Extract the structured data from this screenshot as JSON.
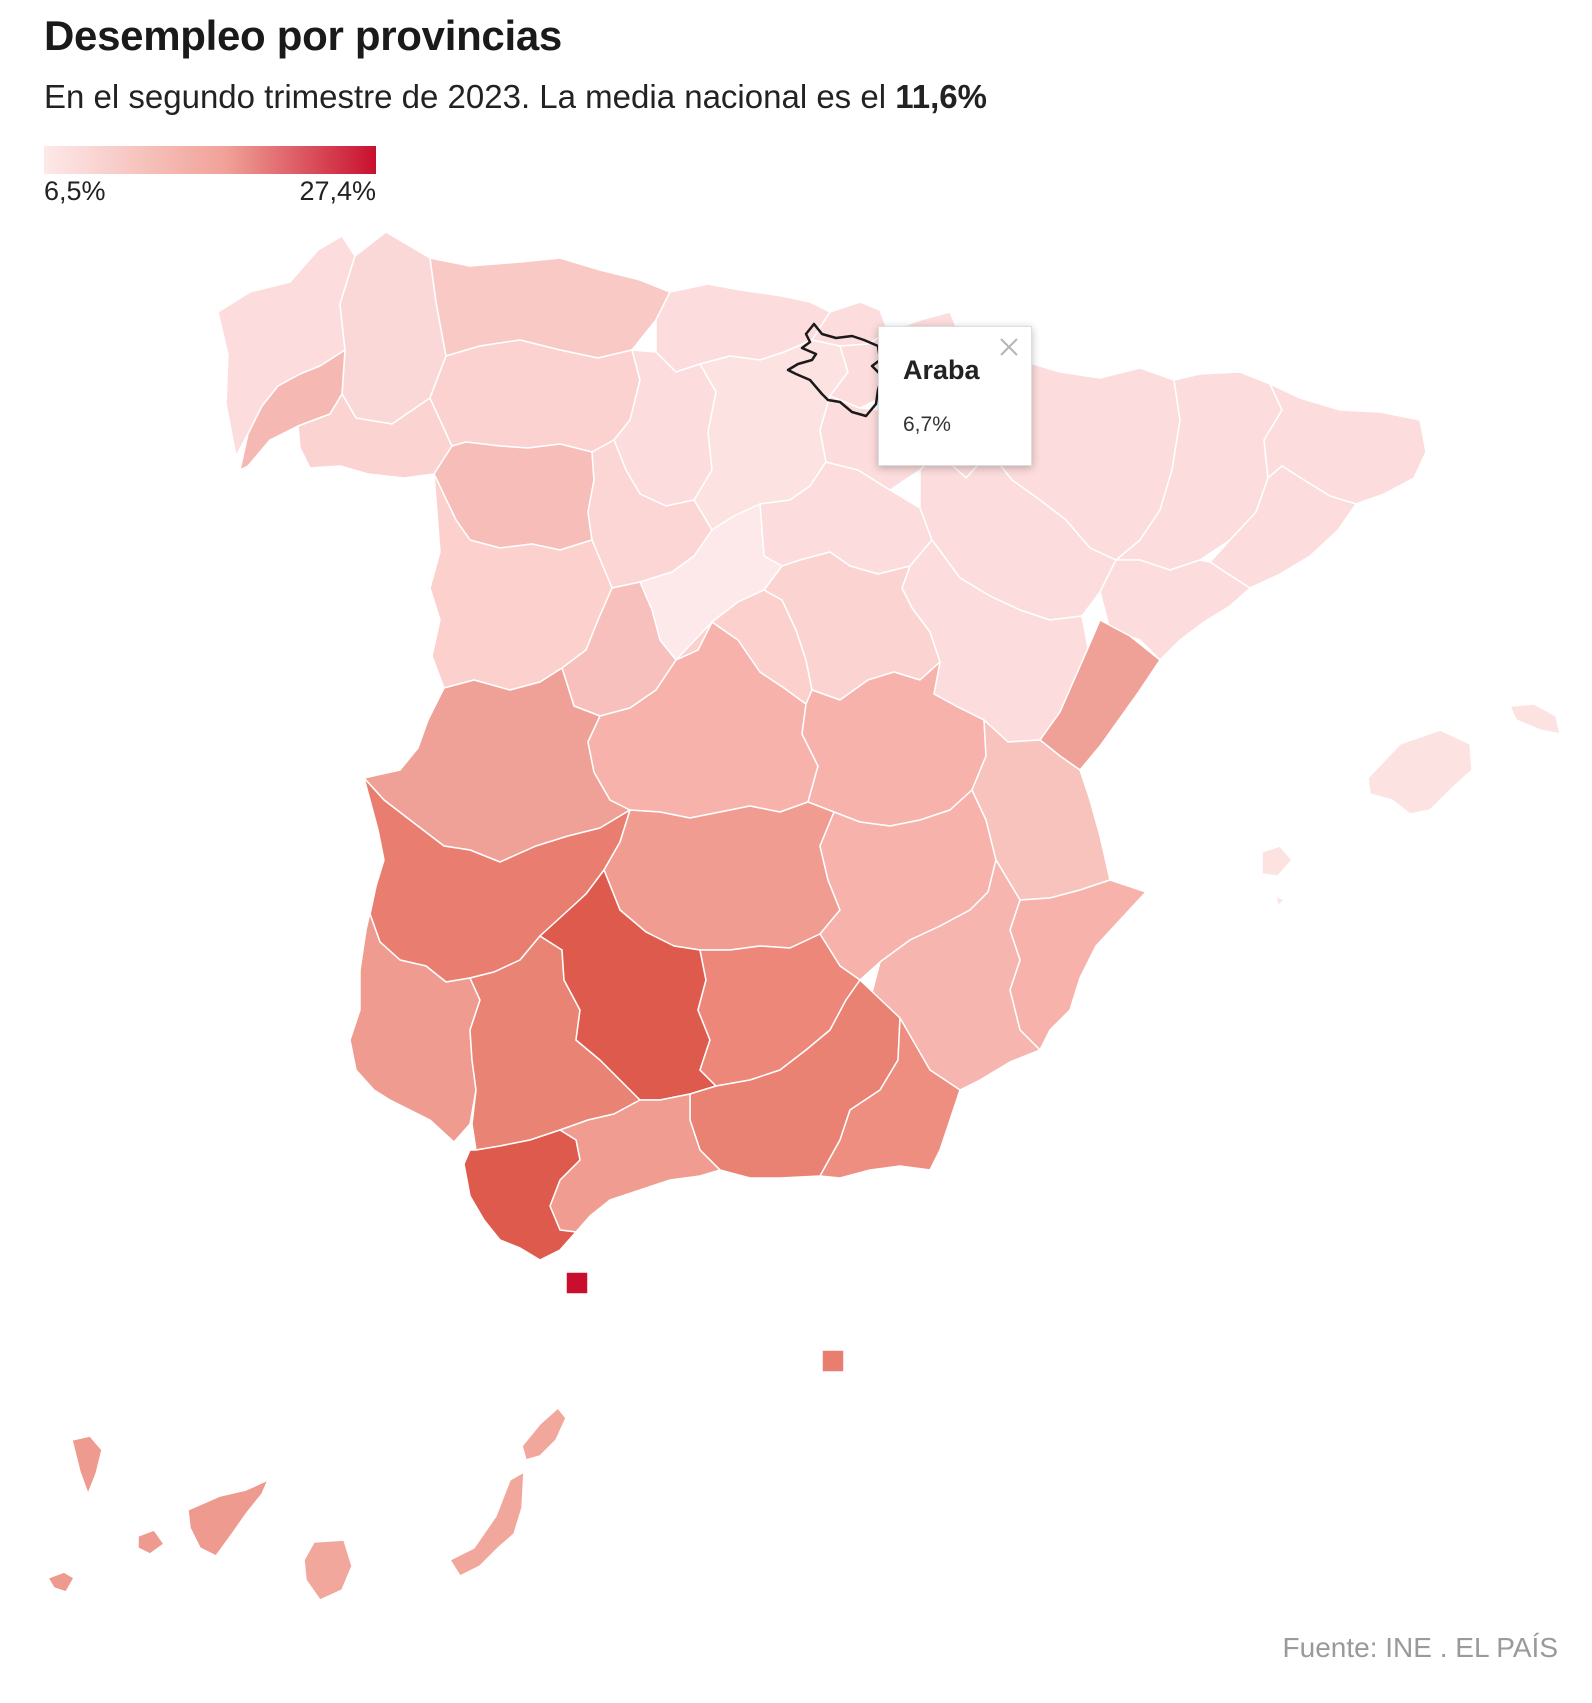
{
  "header": {
    "title": "Desempleo por provincias",
    "subtitle_text": "En el segundo trimestre de 2023. La media nacional es el ",
    "subtitle_value": "11,6%"
  },
  "legend": {
    "min_label": "6,5%",
    "max_label": "27,4%",
    "color_low": "#fde9e9",
    "color_high": "#c8102e"
  },
  "tooltip": {
    "name": "Araba",
    "value": "6,7%"
  },
  "colors": {
    "border": "#ffffff",
    "highlight_outline": "#1a1a1a"
  },
  "source": "Fuente: INE . EL PAÍS"
}
